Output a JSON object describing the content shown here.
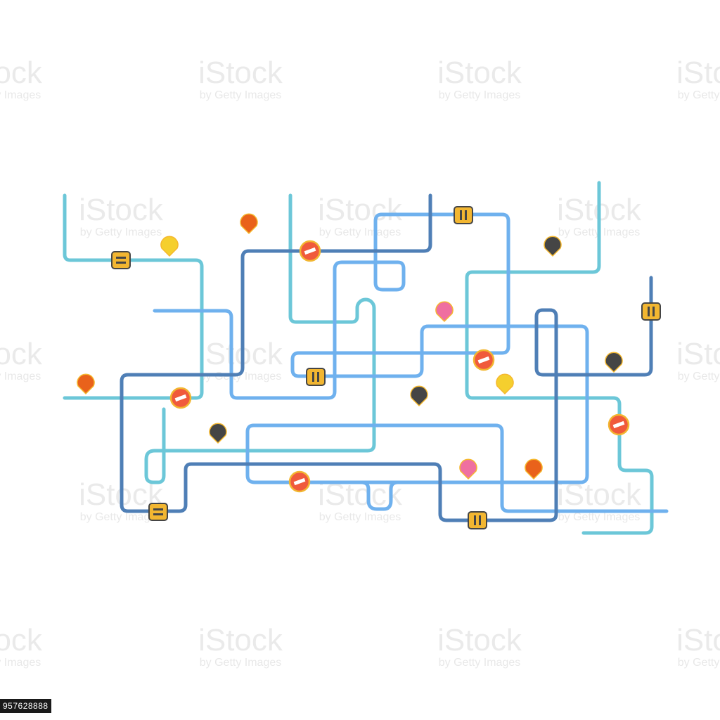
{
  "watermark": {
    "title": "iStock",
    "subtitle": "by Getty Images"
  },
  "image_id": "957628888",
  "colors": {
    "background": "#ffffff",
    "line_cyan": "#6cc7d8",
    "line_sky": "#6fb1ee",
    "line_navy": "#4f7fb6",
    "pin_orange": "#e9621b",
    "pin_yellow": "#f5cf2e",
    "pin_dark": "#454545",
    "pin_pink": "#ef6fa0",
    "pin_outline": "#f5b82e",
    "sign_red": "#f05a3c",
    "sign_yellow": "#f2b631"
  },
  "legend_icons": [
    "route-line",
    "map-pin-icon",
    "no-entry-sign-icon",
    "pause-sign-icon"
  ]
}
